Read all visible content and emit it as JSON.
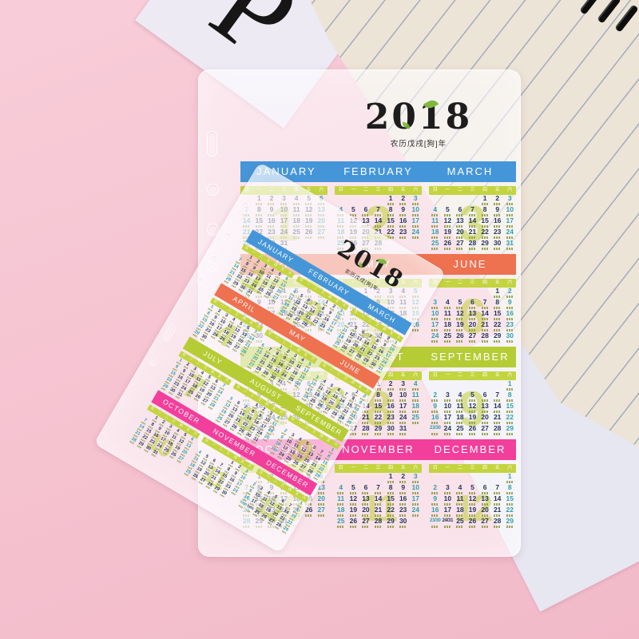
{
  "scene": {
    "background_color": "#f6c3d1"
  },
  "letter_card": {
    "letter": "P"
  },
  "calendar": {
    "logo": {
      "year": "2018",
      "subtitle": "农历戊戌[狗]年"
    },
    "weekdays": [
      "日",
      "一",
      "二",
      "三",
      "四",
      "五",
      "六"
    ],
    "palette": {
      "q1": "#4596d8",
      "q2": "#ee7150",
      "q3": "#b6cc34",
      "q4": "#f13f9b",
      "weekday_strip": "#c3d43f",
      "weekend_text": "#2f9fa8",
      "date_text": "#24365c",
      "watermark": "#bacc26"
    },
    "months": [
      {
        "name": "JANUARY",
        "num": "1",
        "color": "q1",
        "weeks": [
          [
            "",
            "1",
            "2",
            "3",
            "4",
            "5",
            "6"
          ],
          [
            "7",
            "8",
            "9",
            "10",
            "11",
            "12",
            "13"
          ],
          [
            "14",
            "15",
            "16",
            "17",
            "18",
            "19",
            "20"
          ],
          [
            "21",
            "22",
            "23",
            "24",
            "25",
            "26",
            "27"
          ],
          [
            "28",
            "29",
            "30",
            "31",
            "",
            "",
            ""
          ]
        ]
      },
      {
        "name": "FEBRUARY",
        "num": "2",
        "color": "q1",
        "weeks": [
          [
            "",
            "",
            "",
            "",
            "1",
            "2",
            "3"
          ],
          [
            "4",
            "5",
            "6",
            "7",
            "8",
            "9",
            "10"
          ],
          [
            "11",
            "12",
            "13",
            "14",
            "15",
            "16",
            "17"
          ],
          [
            "18",
            "19",
            "20",
            "21",
            "22",
            "23",
            "24"
          ],
          [
            "25",
            "26",
            "27",
            "28",
            "",
            "",
            ""
          ]
        ]
      },
      {
        "name": "MARCH",
        "num": "3",
        "color": "q1",
        "weeks": [
          [
            "",
            "",
            "",
            "",
            "1",
            "2",
            "3"
          ],
          [
            "4",
            "5",
            "6",
            "7",
            "8",
            "9",
            "10"
          ],
          [
            "11",
            "12",
            "13",
            "14",
            "15",
            "16",
            "17"
          ],
          [
            "18",
            "19",
            "20",
            "21",
            "22",
            "23",
            "24"
          ],
          [
            "25",
            "26",
            "27",
            "28",
            "29",
            "30",
            "31"
          ]
        ]
      },
      {
        "name": "APRIL",
        "num": "4",
        "color": "q2",
        "weeks": [
          [
            "1",
            "2",
            "3",
            "4",
            "5",
            "6",
            "7"
          ],
          [
            "8",
            "9",
            "10",
            "11",
            "12",
            "13",
            "14"
          ],
          [
            "15",
            "16",
            "17",
            "18",
            "19",
            "20",
            "21"
          ],
          [
            "22",
            "23",
            "24",
            "25",
            "26",
            "27",
            "28"
          ],
          [
            "29",
            "30",
            "",
            "",
            "",
            "",
            ""
          ]
        ]
      },
      {
        "name": "MAY",
        "num": "5",
        "color": "q2",
        "weeks": [
          [
            "",
            "",
            "1",
            "2",
            "3",
            "4",
            "5"
          ],
          [
            "6",
            "7",
            "8",
            "9",
            "10",
            "11",
            "12"
          ],
          [
            "13",
            "14",
            "15",
            "16",
            "17",
            "18",
            "19"
          ],
          [
            "20",
            "21",
            "22",
            "23",
            "24",
            "25",
            "26"
          ],
          [
            "27",
            "28",
            "29",
            "30",
            "31",
            "",
            ""
          ]
        ]
      },
      {
        "name": "JUNE",
        "num": "6",
        "color": "q2",
        "weeks": [
          [
            "",
            "",
            "",
            "",
            "",
            "1",
            "2"
          ],
          [
            "3",
            "4",
            "5",
            "6",
            "7",
            "8",
            "9"
          ],
          [
            "10",
            "11",
            "12",
            "13",
            "14",
            "15",
            "16"
          ],
          [
            "17",
            "18",
            "19",
            "20",
            "21",
            "22",
            "23"
          ],
          [
            "24",
            "25",
            "26",
            "27",
            "28",
            "29",
            "30"
          ]
        ]
      },
      {
        "name": "JULY",
        "num": "7",
        "color": "q3",
        "weeks": [
          [
            "1",
            "2",
            "3",
            "4",
            "5",
            "6",
            "7"
          ],
          [
            "8",
            "9",
            "10",
            "11",
            "12",
            "13",
            "14"
          ],
          [
            "15",
            "16",
            "17",
            "18",
            "19",
            "20",
            "21"
          ],
          [
            "22",
            "23",
            "24",
            "25",
            "26",
            "27",
            "28"
          ],
          [
            "29",
            "30",
            "31",
            "",
            "",
            "",
            ""
          ]
        ]
      },
      {
        "name": "AUGUST",
        "num": "8",
        "color": "q3",
        "weeks": [
          [
            "",
            "",
            "",
            "1",
            "2",
            "3",
            "4"
          ],
          [
            "5",
            "6",
            "7",
            "8",
            "9",
            "10",
            "11"
          ],
          [
            "12",
            "13",
            "14",
            "15",
            "16",
            "17",
            "18"
          ],
          [
            "19",
            "20",
            "21",
            "22",
            "23",
            "24",
            "25"
          ],
          [
            "26",
            "27",
            "28",
            "29",
            "30",
            "31",
            ""
          ]
        ]
      },
      {
        "name": "SEPTEMBER",
        "num": "9",
        "color": "q3",
        "weeks": [
          [
            "",
            "",
            "",
            "",
            "",
            "",
            "1"
          ],
          [
            "2",
            "3",
            "4",
            "5",
            "6",
            "7",
            "8"
          ],
          [
            "9",
            "10",
            "11",
            "12",
            "13",
            "14",
            "15"
          ],
          [
            "16",
            "17",
            "18",
            "19",
            "20",
            "21",
            "22"
          ],
          [
            "23/30",
            "24",
            "25",
            "26",
            "27",
            "28",
            "29"
          ]
        ]
      },
      {
        "name": "OCTOBER",
        "num": "10",
        "color": "q4",
        "weeks": [
          [
            "",
            "1",
            "2",
            "3",
            "4",
            "5",
            "6"
          ],
          [
            "7",
            "8",
            "9",
            "10",
            "11",
            "12",
            "13"
          ],
          [
            "14",
            "15",
            "16",
            "17",
            "18",
            "19",
            "20"
          ],
          [
            "21",
            "22",
            "23",
            "24",
            "25",
            "26",
            "27"
          ],
          [
            "28",
            "29",
            "30",
            "31",
            "",
            "",
            ""
          ]
        ]
      },
      {
        "name": "NOVEMBER",
        "num": "11",
        "color": "q4",
        "weeks": [
          [
            "",
            "",
            "",
            "",
            "1",
            "2",
            "3"
          ],
          [
            "4",
            "5",
            "6",
            "7",
            "8",
            "9",
            "10"
          ],
          [
            "11",
            "12",
            "13",
            "14",
            "15",
            "16",
            "17"
          ],
          [
            "18",
            "19",
            "20",
            "21",
            "22",
            "23",
            "24"
          ],
          [
            "25",
            "26",
            "27",
            "28",
            "29",
            "30",
            ""
          ]
        ]
      },
      {
        "name": "DECEMBER",
        "num": "12",
        "color": "q4",
        "weeks": [
          [
            "",
            "",
            "",
            "",
            "",
            "",
            "1"
          ],
          [
            "2",
            "3",
            "4",
            "5",
            "6",
            "7",
            "8"
          ],
          [
            "9",
            "10",
            "11",
            "12",
            "13",
            "14",
            "15"
          ],
          [
            "16",
            "17",
            "18",
            "19",
            "20",
            "21",
            "22"
          ],
          [
            "23/30",
            "24/31",
            "25",
            "26",
            "27",
            "28",
            "29"
          ]
        ]
      }
    ]
  }
}
